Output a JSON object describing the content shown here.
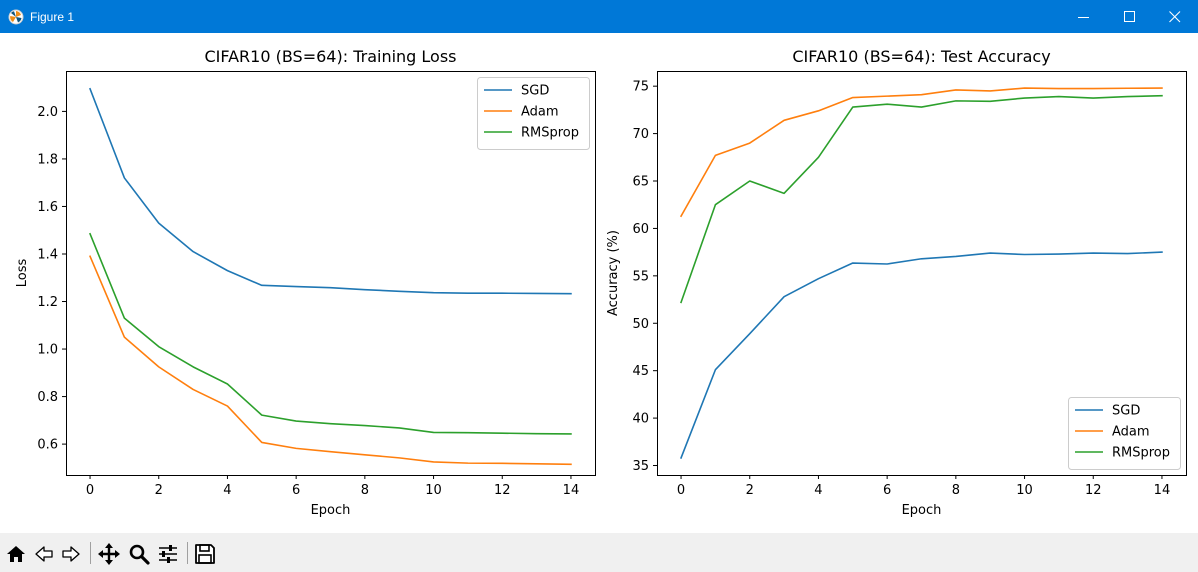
{
  "window": {
    "title": "Figure 1"
  },
  "toolbar": {
    "buttons": [
      "home-icon",
      "back-icon",
      "forward-icon",
      "pan-icon",
      "zoom-icon",
      "configure-subplots-icon",
      "save-icon"
    ]
  },
  "colors": {
    "titlebar": "#0078d7",
    "sgd": "#1f77b4",
    "adam": "#ff7f0e",
    "rmsprop": "#2ca02c"
  },
  "chart_data": [
    {
      "type": "line",
      "title": "CIFAR10 (BS=64): Training Loss",
      "xlabel": "Epoch",
      "ylabel": "Loss",
      "x": [
        0,
        1,
        2,
        3,
        4,
        5,
        6,
        7,
        8,
        9,
        10,
        11,
        12,
        13,
        14
      ],
      "xlim": [
        -0.7,
        14.7
      ],
      "ylim": [
        0.47,
        2.17
      ],
      "xticks": [
        0,
        2,
        4,
        6,
        8,
        10,
        12,
        14
      ],
      "xtick_labels": [
        "0",
        "2",
        "4",
        "6",
        "8",
        "10",
        "12",
        "14"
      ],
      "yticks": [
        0.6,
        0.8,
        1.0,
        1.2,
        1.4,
        1.6,
        1.8,
        2.0
      ],
      "ytick_labels": [
        "0.6",
        "0.8",
        "1.0",
        "1.2",
        "1.4",
        "1.6",
        "1.8",
        "2.0"
      ],
      "legend": "top-right",
      "grid": false,
      "series": [
        {
          "name": "SGD",
          "color": "#1f77b4",
          "values": [
            2.095,
            1.72,
            1.53,
            1.41,
            1.33,
            1.268,
            1.263,
            1.258,
            1.25,
            1.243,
            1.237,
            1.235,
            1.235,
            1.234,
            1.233
          ]
        },
        {
          "name": "Adam",
          "color": "#ff7f0e",
          "values": [
            1.39,
            1.05,
            0.925,
            0.83,
            0.76,
            0.607,
            0.582,
            0.568,
            0.555,
            0.542,
            0.525,
            0.52,
            0.519,
            0.517,
            0.515
          ]
        },
        {
          "name": "RMSprop",
          "color": "#2ca02c",
          "values": [
            1.485,
            1.13,
            1.01,
            0.925,
            0.853,
            0.722,
            0.697,
            0.686,
            0.678,
            0.668,
            0.649,
            0.648,
            0.646,
            0.644,
            0.643
          ]
        }
      ]
    },
    {
      "type": "line",
      "title": "CIFAR10 (BS=64): Test Accuracy",
      "xlabel": "Epoch",
      "ylabel": "Accuracy (%)",
      "x": [
        0,
        1,
        2,
        3,
        4,
        5,
        6,
        7,
        8,
        9,
        10,
        11,
        12,
        13,
        14
      ],
      "xlim": [
        -0.7,
        14.7
      ],
      "ylim": [
        34,
        76.6
      ],
      "xticks": [
        0,
        2,
        4,
        6,
        8,
        10,
        12,
        14
      ],
      "xtick_labels": [
        "0",
        "2",
        "4",
        "6",
        "8",
        "10",
        "12",
        "14"
      ],
      "yticks": [
        35,
        40,
        45,
        50,
        55,
        60,
        65,
        70,
        75
      ],
      "ytick_labels": [
        "35",
        "40",
        "45",
        "50",
        "55",
        "60",
        "65",
        "70",
        "75"
      ],
      "legend": "lower-right",
      "grid": false,
      "series": [
        {
          "name": "SGD",
          "color": "#1f77b4",
          "values": [
            35.8,
            45.1,
            48.9,
            52.8,
            54.7,
            56.35,
            56.25,
            56.8,
            57.05,
            57.4,
            57.25,
            57.3,
            57.4,
            57.35,
            57.5
          ]
        },
        {
          "name": "Adam",
          "color": "#ff7f0e",
          "values": [
            61.3,
            67.7,
            69.0,
            71.4,
            72.4,
            73.8,
            73.95,
            74.1,
            74.6,
            74.5,
            74.8,
            74.75,
            74.75,
            74.78,
            74.8
          ]
        },
        {
          "name": "RMSprop",
          "color": "#2ca02c",
          "values": [
            52.2,
            62.5,
            65.0,
            63.7,
            67.5,
            72.8,
            73.1,
            72.8,
            73.45,
            73.4,
            73.75,
            73.9,
            73.75,
            73.9,
            74.0
          ]
        }
      ]
    }
  ]
}
